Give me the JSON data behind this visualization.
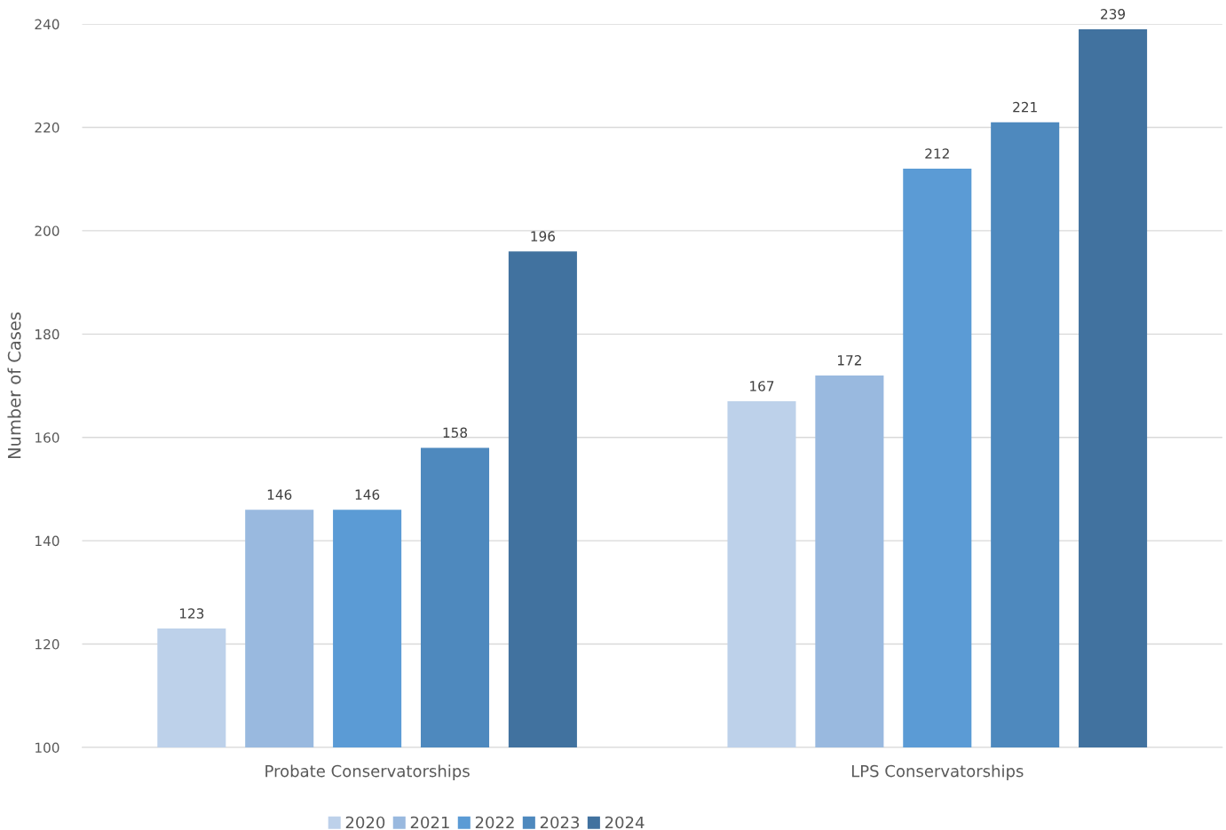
{
  "chart_data": {
    "type": "bar",
    "ylabel": "Number of Cases",
    "categories": [
      "Probate Conservatorships",
      "LPS Conservatorships"
    ],
    "series": [
      {
        "name": "2020",
        "color": "#bdd1ea",
        "values": [
          123,
          167
        ]
      },
      {
        "name": "2021",
        "color": "#99b9df",
        "values": [
          146,
          172
        ]
      },
      {
        "name": "2022",
        "color": "#5b9bd5",
        "values": [
          146,
          212
        ]
      },
      {
        "name": "2023",
        "color": "#4e89be",
        "values": [
          158,
          221
        ]
      },
      {
        "name": "2024",
        "color": "#41729f",
        "values": [
          196,
          239
        ]
      }
    ],
    "ylim": [
      100,
      240
    ],
    "yticks": [
      100,
      120,
      140,
      160,
      180,
      200,
      220,
      240
    ],
    "grid": "y",
    "legend": "bottom",
    "data_labels": true
  }
}
